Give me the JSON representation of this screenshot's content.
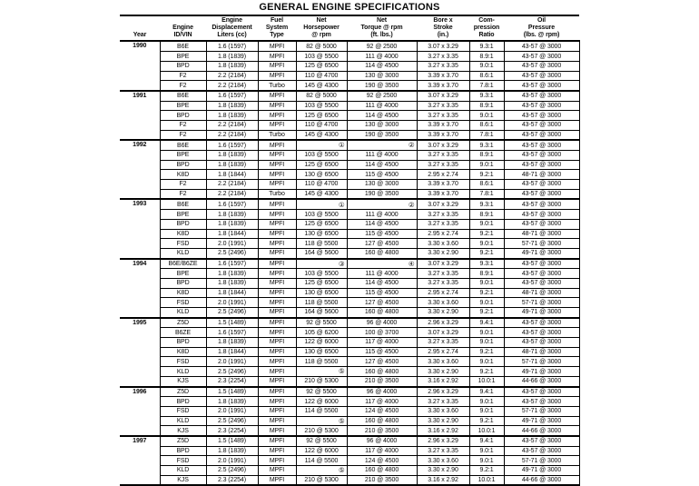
{
  "title": "GENERAL ENGINE SPECIFICATIONS",
  "columns": [
    "Year",
    "Engine\nID/VIN",
    "Engine\nDisplacement\nLiters (cc)",
    "Fuel\nSystem\nType",
    "Net\nHorsepower\n@ rpm",
    "Net\nTorque @ rpm\n(ft. lbs.)",
    "Bore x\nStroke\n(in.)",
    "Com-\npression\nRatio",
    "Oil\nPressure\n(lbs. @ rpm)"
  ],
  "footnote_symbols": [
    "①",
    "②",
    "③",
    "④",
    "⑤"
  ],
  "groups": [
    {
      "year": "1990",
      "rows": [
        [
          "B6E",
          "1.6 (1597)",
          "MPFI",
          "82 @ 5000",
          "92 @ 2500",
          "3.07 x 3.29",
          "9.3:1",
          "43-57 @ 3000"
        ],
        [
          "BPE",
          "1.8 (1839)",
          "MPFI",
          "103 @ 5500",
          "111 @ 4000",
          "3.27 x 3.35",
          "8.9:1",
          "43-57 @ 3000"
        ],
        [
          "BPD",
          "1.8 (1839)",
          "MPFI",
          "125 @ 6500",
          "114 @ 4500",
          "3.27 x 3.35",
          "9.0:1",
          "43-57 @ 3000"
        ],
        [
          "F2",
          "2.2 (2184)",
          "MPFI",
          "110 @ 4700",
          "130 @ 3000",
          "3.39 x 3.70",
          "8.6:1",
          "43-57 @ 3000"
        ],
        [
          "F2",
          "2.2 (2184)",
          "Turbo",
          "145 @ 4300",
          "190 @ 3500",
          "3.39 x 3.70",
          "7.8:1",
          "43-57 @ 3000"
        ]
      ]
    },
    {
      "year": "1991",
      "rows": [
        [
          "B6E",
          "1.6 (1597)",
          "MPFI",
          "82 @ 5000",
          "92 @ 2500",
          "3.07 x 3.29",
          "9.3:1",
          "43-57 @ 3000"
        ],
        [
          "BPE",
          "1.8 (1839)",
          "MPFI",
          "103 @ 5500",
          "111 @ 4000",
          "3.27 x 3.35",
          "8.9:1",
          "43-57 @ 3000"
        ],
        [
          "BPD",
          "1.8 (1839)",
          "MPFI",
          "125 @ 6500",
          "114 @ 4500",
          "3.27 x 3.35",
          "9.0:1",
          "43-57 @ 3000"
        ],
        [
          "F2",
          "2.2 (2184)",
          "MPFI",
          "110 @ 4700",
          "130 @ 3000",
          "3.39 x 3.70",
          "8.6:1",
          "43-57 @ 3000"
        ],
        [
          "F2",
          "2.2 (2184)",
          "Turbo",
          "145 @ 4300",
          "190 @ 3500",
          "3.39 x 3.70",
          "7.8:1",
          "43-57 @ 3000"
        ]
      ]
    },
    {
      "year": "1992",
      "rows": [
        [
          "B6E",
          "1.6 (1597)",
          "MPFI",
          "①",
          "②",
          "3.07 x 3.29",
          "9.3:1",
          "43-57 @ 3000"
        ],
        [
          "BPE",
          "1.8 (1839)",
          "MPFI",
          "103 @ 5500",
          "111 @ 4000",
          "3.27 x 3.35",
          "8.9:1",
          "43-57 @ 3000"
        ],
        [
          "BPD",
          "1.8 (1839)",
          "MPFI",
          "125 @ 6500",
          "114 @ 4500",
          "3.27 x 3.35",
          "9.0:1",
          "43-57 @ 3000"
        ],
        [
          "K8D",
          "1.8 (1844)",
          "MPFI",
          "130 @ 6500",
          "115 @ 4500",
          "2.95 x 2.74",
          "9.2:1",
          "48-71 @ 3000"
        ],
        [
          "F2",
          "2.2 (2184)",
          "MPFI",
          "110 @ 4700",
          "130 @ 3000",
          "3.39 x 3.70",
          "8.6:1",
          "43-57 @ 3000"
        ],
        [
          "F2",
          "2.2 (2184)",
          "Turbo",
          "145 @ 4300",
          "190 @ 3500",
          "3.39 x 3.70",
          "7.8:1",
          "43-57 @ 3000"
        ]
      ]
    },
    {
      "year": "1993",
      "rows": [
        [
          "B6E",
          "1.6 (1597)",
          "MPFI",
          "①",
          "②",
          "3.07 x 3.29",
          "9.3:1",
          "43-57 @ 3000"
        ],
        [
          "BPE",
          "1.8 (1839)",
          "MPFI",
          "103 @ 5500",
          "111 @ 4000",
          "3.27 x 3.35",
          "8.9:1",
          "43-57 @ 3000"
        ],
        [
          "BPD",
          "1.8 (1839)",
          "MPFI",
          "125 @ 6500",
          "114 @ 4500",
          "3.27 x 3.35",
          "9.0:1",
          "43-57 @ 3000"
        ],
        [
          "K8D",
          "1.8 (1844)",
          "MPFI",
          "130 @ 6500",
          "115 @ 4500",
          "2.95 x 2.74",
          "9.2:1",
          "48-71 @ 3000"
        ],
        [
          "FSD",
          "2.0 (1991)",
          "MPFI",
          "118 @ 5500",
          "127 @ 4500",
          "3.30 x 3.60",
          "9.0:1",
          "57-71 @ 3000"
        ],
        [
          "KLD",
          "2.5 (2496)",
          "MPFI",
          "164 @ 5600",
          "160 @ 4800",
          "3.30 x 2.90",
          "9.2:1",
          "49-71 @ 3000"
        ]
      ]
    },
    {
      "year": "1994",
      "rows": [
        [
          "B6E/B6ZE",
          "1.6 (1597)",
          "MPFI",
          "③",
          "④",
          "3.07 x 3.29",
          "9.3:1",
          "43-57 @ 3000"
        ],
        [
          "BPE",
          "1.8 (1839)",
          "MPFI",
          "103 @ 5500",
          "111 @ 4000",
          "3.27 x 3.35",
          "8.9:1",
          "43-57 @ 3000"
        ],
        [
          "BPD",
          "1.8 (1839)",
          "MPFI",
          "125 @ 6500",
          "114 @ 4500",
          "3.27 x 3.35",
          "9.0:1",
          "43-57 @ 3000"
        ],
        [
          "K8D",
          "1.8 (1844)",
          "MPFI",
          "130 @ 6500",
          "115 @ 4500",
          "2.95 x 2.74",
          "9.2:1",
          "48-71 @ 3000"
        ],
        [
          "FSD",
          "2.0 (1991)",
          "MPFI",
          "118 @ 5500",
          "127 @ 4500",
          "3.30 x 3.60",
          "9.0:1",
          "57-71 @ 3000"
        ],
        [
          "KLD",
          "2.5 (2496)",
          "MPFI",
          "164 @ 5600",
          "160 @ 4800",
          "3.30 x 2.90",
          "9.2:1",
          "49-71 @ 3000"
        ]
      ]
    },
    {
      "year": "1995",
      "rows": [
        [
          "Z5D",
          "1.5 (1489)",
          "MPFI",
          "92 @ 5500",
          "96 @ 4000",
          "2.96 x 3.29",
          "9.4:1",
          "43-57 @ 3000"
        ],
        [
          "B6ZE",
          "1.6 (1597)",
          "MPFI",
          "105 @ 6200",
          "100 @ 3700",
          "3.07 x 3.29",
          "9.0:1",
          "43-57 @ 3000"
        ],
        [
          "BPD",
          "1.8 (1839)",
          "MPFI",
          "122 @ 6000",
          "117 @ 4000",
          "3.27 x 3.35",
          "9.0:1",
          "43-57 @ 3000"
        ],
        [
          "K8D",
          "1.8 (1844)",
          "MPFI",
          "130 @ 6500",
          "115 @ 4500",
          "2.95 x 2.74",
          "9.2:1",
          "48-71 @ 3000"
        ],
        [
          "FSD",
          "2.0 (1991)",
          "MPFI",
          "118 @ 5500",
          "127 @ 4500",
          "3.30 x 3.60",
          "9.0:1",
          "57-71 @ 3000"
        ],
        [
          "KLD",
          "2.5 (2496)",
          "MPFI",
          "⑤",
          "160 @ 4800",
          "3.30 x 2.90",
          "9.2:1",
          "49-71 @ 3000"
        ],
        [
          "KJS",
          "2.3 (2254)",
          "MPFI",
          "210 @ 5300",
          "210 @ 3500",
          "3.16 x 2.92",
          "10.0:1",
          "44-66 @ 3000"
        ]
      ]
    },
    {
      "year": "1996",
      "rows": [
        [
          "Z5D",
          "1.5 (1489)",
          "MPFI",
          "92 @ 5500",
          "96 @ 4000",
          "2.96 x 3.29",
          "9.4:1",
          "43-57 @ 3000"
        ],
        [
          "BPD",
          "1.8 (1839)",
          "MPFI",
          "122 @ 6000",
          "117 @ 4000",
          "3.27 x 3.35",
          "9.0:1",
          "43-57 @ 3000"
        ],
        [
          "FSD",
          "2.0 (1991)",
          "MPFI",
          "114 @ 5500",
          "124 @ 4500",
          "3.30 x 3.60",
          "9.0:1",
          "57-71 @ 3000"
        ],
        [
          "KLD",
          "2.5 (2496)",
          "MPFI",
          "⑤",
          "160 @ 4800",
          "3.30 x 2.90",
          "9.2:1",
          "49-71 @ 3000"
        ],
        [
          "KJS",
          "2.3 (2254)",
          "MPFI",
          "210 @ 5300",
          "210 @ 3500",
          "3.16 x 2.92",
          "10.0:1",
          "44-66 @ 3000"
        ]
      ]
    },
    {
      "year": "1997",
      "rows": [
        [
          "Z5D",
          "1.5 (1489)",
          "MPFI",
          "92 @ 5500",
          "96 @ 4000",
          "2.96 x 3.29",
          "9.4:1",
          "43-57 @ 3000"
        ],
        [
          "BPD",
          "1.8 (1839)",
          "MPFI",
          "122 @ 6000",
          "117 @ 4000",
          "3.27 x 3.35",
          "9.0:1",
          "43-57 @ 3000"
        ],
        [
          "FSD",
          "2.0 (1991)",
          "MPFI",
          "114 @ 5500",
          "124 @ 4500",
          "3.30 x 3.60",
          "9.0:1",
          "57-71 @ 3000"
        ],
        [
          "KLD",
          "2.5 (2496)",
          "MPFI",
          "⑤",
          "160 @ 4800",
          "3.30 x 2.90",
          "9.2:1",
          "49-71 @ 3000"
        ],
        [
          "KJS",
          "2.3 (2254)",
          "MPFI",
          "210 @ 5300",
          "210 @ 3500",
          "3.16 x 2.92",
          "10.0:1",
          "44-66 @ 3000"
        ]
      ]
    }
  ]
}
